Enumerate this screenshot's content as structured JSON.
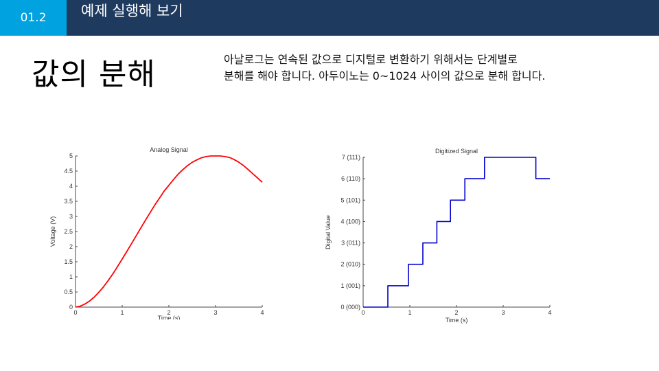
{
  "header": {
    "section_number": "01.2",
    "title": "예제 실행해 보기"
  },
  "slide": {
    "title": "값의 분해",
    "description_line1": "아날로그는 연속된 값으로 디지털로 변환하기 위해서는 단계별로",
    "description_line2": "분해를 해야 합니다. 아두이노는 0~1024 사이의 값으로 분해 합니다."
  },
  "colors": {
    "header_bg": "#1e3a5f",
    "section_bg": "#00a3e0",
    "analog_line": "#ff0000",
    "digital_line": "#0000cc"
  },
  "chart_data": [
    {
      "type": "line",
      "title": "Analog Signal",
      "xlabel": "Time (s)",
      "ylabel": "Voltage (V)",
      "xlim": [
        0,
        4
      ],
      "ylim": [
        0,
        5
      ],
      "xticks": [
        "0",
        "1",
        "2",
        "3",
        "4"
      ],
      "yticks": [
        "0",
        "0.5",
        "1",
        "1.5",
        "2",
        "2.5",
        "3",
        "3.5",
        "4",
        "4.5",
        "5"
      ],
      "grid": false,
      "series": [
        {
          "x": [
            0,
            0.1,
            0.2,
            0.3,
            0.4,
            0.5,
            0.6,
            0.7,
            0.8,
            0.9,
            1.0,
            1.1,
            1.2,
            1.3,
            1.4,
            1.5,
            1.6,
            1.7,
            1.8,
            1.9,
            2.0,
            2.1,
            2.2,
            2.3,
            2.4,
            2.5,
            2.6,
            2.7,
            2.8,
            2.9,
            3.0,
            3.1,
            3.2,
            3.3,
            3.4,
            3.5,
            3.6,
            3.7,
            3.8,
            3.9,
            4.0
          ],
          "y": [
            0,
            0.03,
            0.1,
            0.2,
            0.33,
            0.49,
            0.67,
            0.88,
            1.1,
            1.34,
            1.59,
            1.84,
            2.1,
            2.36,
            2.62,
            2.88,
            3.13,
            3.38,
            3.61,
            3.84,
            4.03,
            4.22,
            4.4,
            4.55,
            4.68,
            4.79,
            4.87,
            4.94,
            4.98,
            5.0,
            5.0,
            5.0,
            4.98,
            4.95,
            4.88,
            4.79,
            4.68,
            4.55,
            4.41,
            4.27,
            4.13
          ]
        }
      ]
    },
    {
      "type": "line",
      "title": "Digitized Signal",
      "xlabel": "Time (s)",
      "ylabel": "Digital Value",
      "xlim": [
        0,
        4
      ],
      "ylim": [
        0,
        7
      ],
      "xticks": [
        "0",
        "1",
        "2",
        "3",
        "4"
      ],
      "yticks": [
        "0 (000)",
        "1 (001)",
        "2 (010)",
        "3 (011)",
        "4 (100)",
        "5 (101)",
        "6 (110)",
        "7 (111)"
      ],
      "grid": false,
      "series": [
        {
          "x": [
            0,
            0.53,
            0.53,
            0.97,
            0.97,
            1.28,
            1.28,
            1.58,
            1.58,
            1.87,
            1.87,
            2.18,
            2.18,
            2.6,
            2.6,
            3.7,
            3.7,
            4.0
          ],
          "y": [
            0,
            0,
            1,
            1,
            2,
            2,
            3,
            3,
            4,
            4,
            5,
            5,
            6,
            6,
            7,
            7,
            6,
            6
          ]
        }
      ]
    }
  ]
}
